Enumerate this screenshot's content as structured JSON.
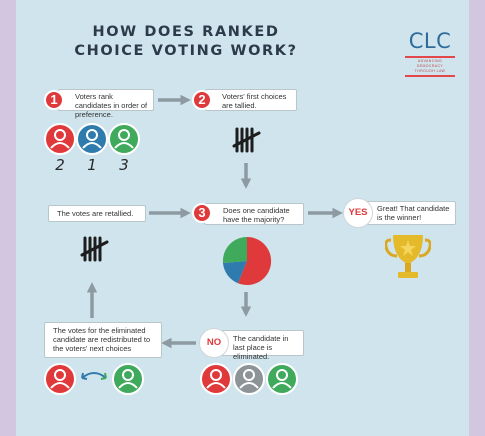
{
  "title": {
    "line1": "HOW DOES RANKED",
    "line2": "CHOICE VOTING WORK?"
  },
  "logo": {
    "letters": "CLC",
    "tagline": [
      "ADVANCING",
      "DEMOCRACY",
      "THROUGH LAW"
    ]
  },
  "steps": [
    {
      "number": "1",
      "text": "Voters rank candidates in order of preference."
    },
    {
      "number": "2",
      "text": "Voters' first choices are tallied."
    },
    {
      "number": "3",
      "text": "Does one candidate have the majority?"
    }
  ],
  "yes": {
    "label": "YES",
    "text": "Great! That candidate is the winner!"
  },
  "no": {
    "label": "NO",
    "text": "The candidate in last place is eliminated."
  },
  "retally": {
    "text": "The votes are retallied."
  },
  "redistribute": {
    "text": "The votes for the eliminated candidate are redistributed to the voters' next choices"
  },
  "rankings": [
    "2",
    "1",
    "3"
  ],
  "colors": {
    "red": "#e0393b",
    "blue": "#2f7bae",
    "green": "#3fa95c",
    "gray": "#8d9497",
    "arrow": "#8e9aa2",
    "gold": "#e4b92a",
    "background": "#cfe4ec",
    "frame": "#d3c6e0"
  },
  "icons": [
    "person-icon",
    "tally-icon",
    "pie-chart-icon",
    "trophy-icon",
    "arrow-icon",
    "swap-arrows-icon"
  ]
}
